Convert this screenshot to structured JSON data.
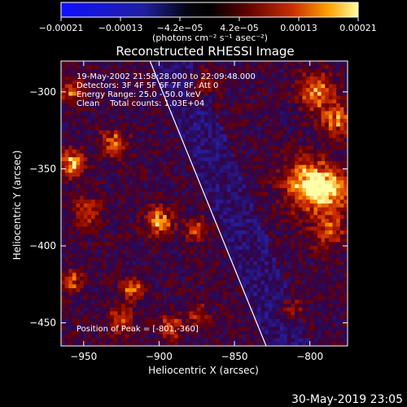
{
  "chart_data": {
    "type": "heatmap",
    "title": "Reconstructed RHESSI Image",
    "xlabel": "Heliocentric X (arcsec)",
    "ylabel": "Heliocentric Y (arcsec)",
    "xlim": [
      -965,
      -775
    ],
    "ylim": [
      -465,
      -280
    ],
    "xticks": [
      {
        "value": -950,
        "label": "−950"
      },
      {
        "value": -900,
        "label": "−900"
      },
      {
        "value": -850,
        "label": "−850"
      },
      {
        "value": -800,
        "label": "−800"
      }
    ],
    "yticks": [
      {
        "value": -300,
        "label": "−300"
      },
      {
        "value": -350,
        "label": "−350"
      },
      {
        "value": -400,
        "label": "−400"
      },
      {
        "value": -450,
        "label": "−450"
      }
    ],
    "colorbar": {
      "min": -0.00021,
      "max": 0.00021,
      "tick_labels": [
        "−0.00021",
        "−0.00013",
        "−4.2e−05",
        "4.2e−05",
        "0.00013",
        "0.00021"
      ],
      "unit_label": "(photons cm⁻² s⁻¹ asec⁻²)"
    },
    "annotations": {
      "time_range": "19-May-2002 21:58:28.000 to 22:09:48.000",
      "detectors": "Detectors: 3F 4F 5F 6F 7F 8F, Att 0",
      "energy": "Energy Range: 25.0 - 50.0 keV",
      "clean": "Clean    Total counts: 1.03E+04",
      "peak": "Position of Peak = [-801,-360]"
    },
    "limb_line": {
      "from": [
        -906,
        -280
      ],
      "to": [
        -829,
        -465
      ]
    },
    "peak_position": [
      -801,
      -360
    ],
    "hotspots": [
      {
        "x": -801,
        "y": -360,
        "amp": 0.00021,
        "r": 11
      },
      {
        "x": -786,
        "y": -365,
        "amp": 0.00016,
        "r": 9
      },
      {
        "x": -795,
        "y": -300,
        "amp": 0.00017,
        "r": 8
      },
      {
        "x": -782,
        "y": -318,
        "amp": 0.00014,
        "r": 7
      },
      {
        "x": -788,
        "y": -390,
        "amp": 0.00012,
        "r": 8
      },
      {
        "x": -958,
        "y": -346,
        "amp": 0.00018,
        "r": 6
      },
      {
        "x": -958,
        "y": -300,
        "amp": 0.00014,
        "r": 5
      },
      {
        "x": -930,
        "y": -333,
        "amp": 0.00013,
        "r": 6
      },
      {
        "x": -948,
        "y": -378,
        "amp": 0.00012,
        "r": 6
      },
      {
        "x": -900,
        "y": -384,
        "amp": 0.00017,
        "r": 6
      },
      {
        "x": -875,
        "y": -390,
        "amp": 0.00012,
        "r": 5
      },
      {
        "x": -918,
        "y": -428,
        "amp": 0.00014,
        "r": 5
      },
      {
        "x": -925,
        "y": -449,
        "amp": 0.00012,
        "r": 6
      },
      {
        "x": -958,
        "y": -423,
        "amp": 0.00012,
        "r": 5
      },
      {
        "x": -892,
        "y": -453,
        "amp": 0.00013,
        "r": 5
      },
      {
        "x": -875,
        "y": -445,
        "amp": 0.0001,
        "r": 5
      },
      {
        "x": -812,
        "y": -440,
        "amp": 8e-05,
        "r": 6
      },
      {
        "x": -872,
        "y": -296,
        "amp": 9e-05,
        "r": 6
      }
    ]
  },
  "footer": {
    "timestamp": "30-May-2019 23:05"
  }
}
